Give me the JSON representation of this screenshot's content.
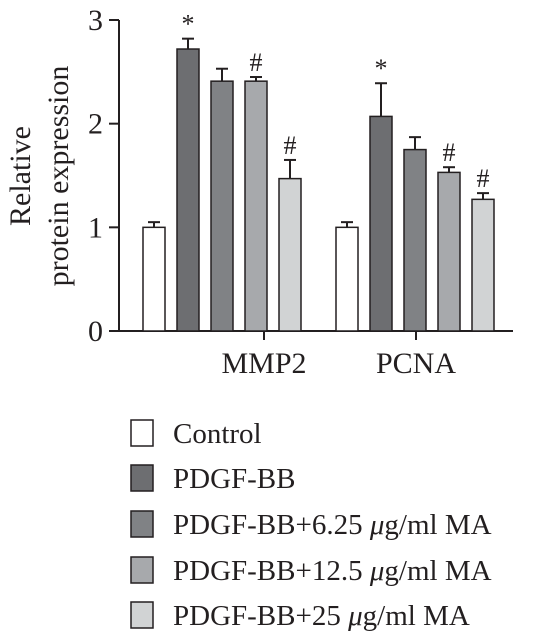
{
  "chart_data": {
    "type": "bar",
    "ylabel_lines": [
      "Relative",
      "protein expression"
    ],
    "xlabel": "",
    "ylim": [
      0,
      3
    ],
    "yticks": [
      "0",
      "1",
      "2",
      "3"
    ],
    "categories": [
      "MMP2",
      "PCNA"
    ],
    "series": [
      {
        "name": "Control",
        "values": [
          1.0,
          1.0
        ],
        "errors": [
          0.05,
          0.05
        ],
        "marks": [
          "",
          ""
        ],
        "color": "#ffffff"
      },
      {
        "name": "PDGF-BB",
        "values": [
          2.72,
          2.07
        ],
        "errors": [
          0.1,
          0.32
        ],
        "marks": [
          "*",
          "*"
        ],
        "color": "#6d6e71"
      },
      {
        "name_parts": [
          "PDGF-BB+6.25 ",
          "μ",
          "g/ml MA"
        ],
        "values": [
          2.41,
          1.75
        ],
        "errors": [
          0.12,
          0.12
        ],
        "marks": [
          "",
          ""
        ],
        "color": "#808285"
      },
      {
        "name_parts": [
          "PDGF-BB+12.5 ",
          "μ",
          "g/ml MA"
        ],
        "values": [
          2.41,
          1.53
        ],
        "errors": [
          0.04,
          0.05
        ],
        "marks": [
          "#",
          "#"
        ],
        "color": "#a7a9ac"
      },
      {
        "name_parts": [
          "PDGF-BB+25 ",
          "μ",
          "g/ml MA"
        ],
        "values": [
          1.47,
          1.27
        ],
        "errors": [
          0.18,
          0.06
        ],
        "marks": [
          "#",
          "#"
        ],
        "color": "#d1d3d4"
      }
    ],
    "legend_position": "bottom",
    "grid": false
  }
}
